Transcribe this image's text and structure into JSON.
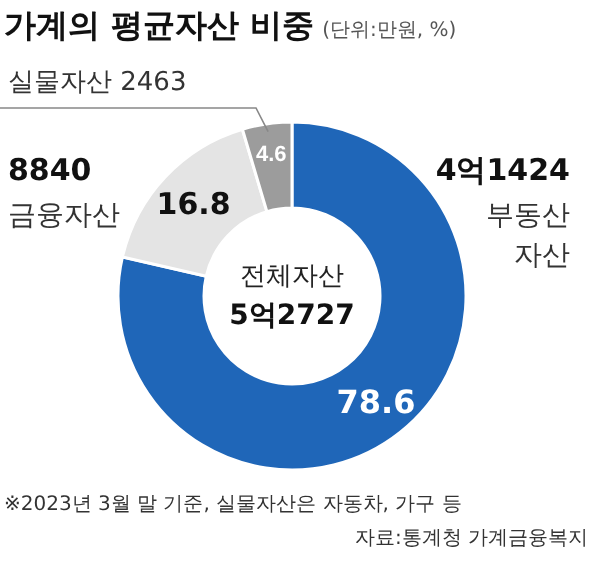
{
  "chart_data": {
    "type": "donut",
    "title": "가계의 평균자산 비중",
    "subtitle": "(단위:만원, %)",
    "categories": [
      "부동산 자산",
      "금융자산",
      "실물자산"
    ],
    "values": [
      78.6,
      16.8,
      4.6
    ],
    "colors": [
      "#1f66b8",
      "#e4e4e4",
      "#9c9c9c"
    ],
    "data_labels": true,
    "annotations": [
      "4억1424",
      "8840",
      "2463",
      "전체자산",
      "5억2727",
      "※2023년 3월 말 기준, 실물자산은 자동차, 가구 등",
      "자료:통계청 가계금융복지"
    ]
  }
}
